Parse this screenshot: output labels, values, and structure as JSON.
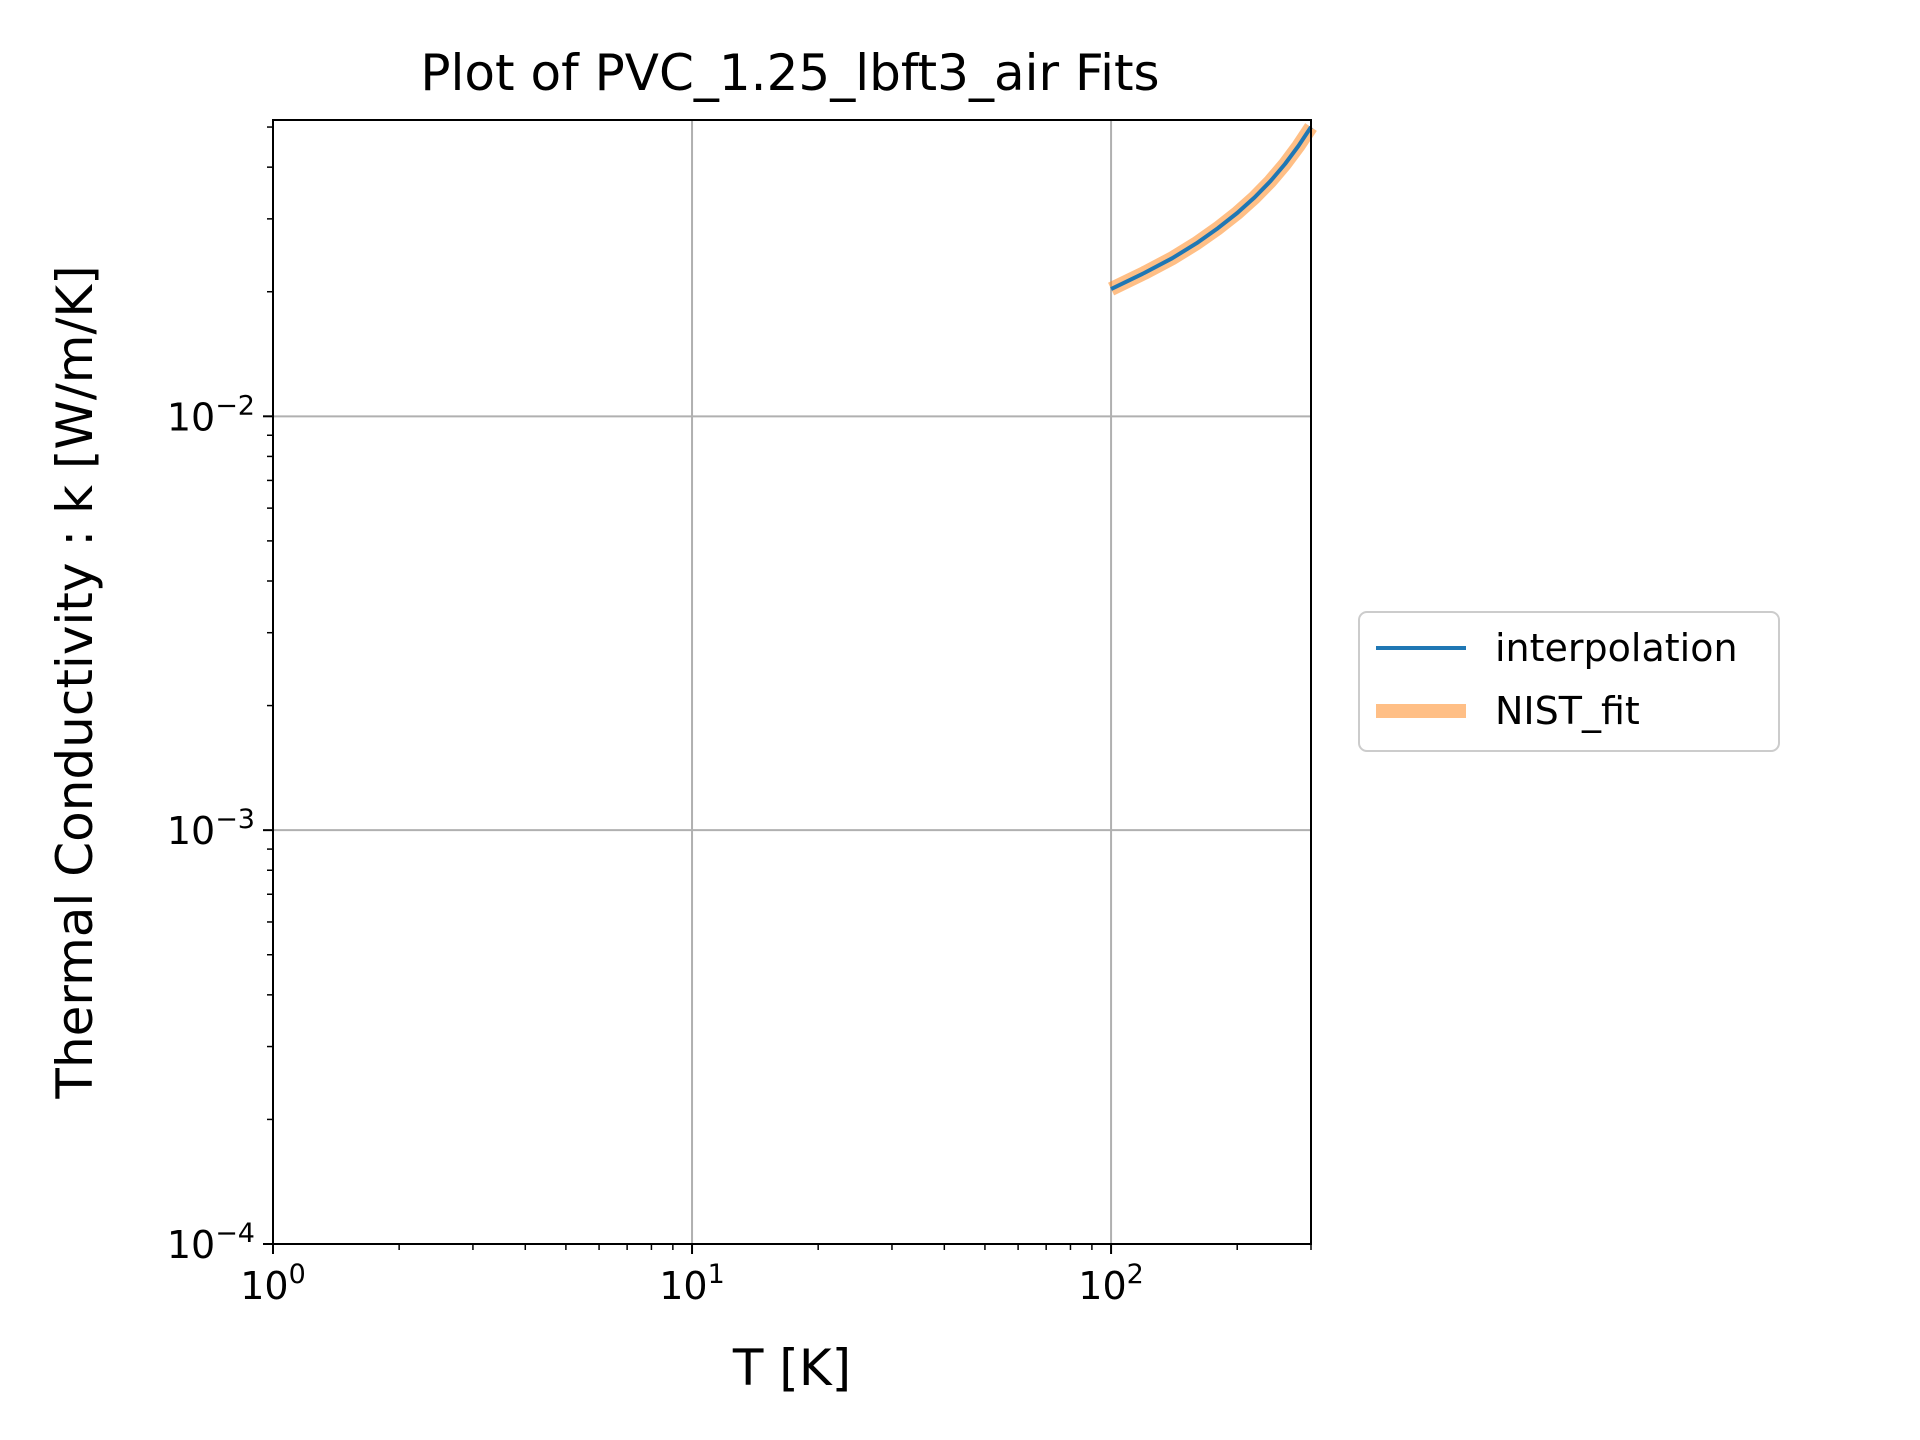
{
  "chart_data": {
    "type": "line",
    "title": "Plot of PVC_1.25_lbft3_air Fits",
    "xlabel": "T [K]",
    "ylabel": "Thermal Conductivity : k [W/m/K]",
    "xscale": "log",
    "yscale": "log",
    "xlim": [
      1,
      300
    ],
    "ylim": [
      0.0001,
      0.052
    ],
    "grid": true,
    "legend_position": "outside-right",
    "x_ticks": [
      {
        "value": 1,
        "base": "10",
        "exp": "0"
      },
      {
        "value": 10,
        "base": "10",
        "exp": "1"
      },
      {
        "value": 100,
        "base": "10",
        "exp": "2"
      }
    ],
    "y_ticks": [
      {
        "value": 0.0001,
        "base": "10",
        "exp": "−4"
      },
      {
        "value": 0.001,
        "base": "10",
        "exp": "−3"
      },
      {
        "value": 0.01,
        "base": "10",
        "exp": "−2"
      }
    ],
    "series": [
      {
        "name": "interpolation",
        "color": "#1f77b4",
        "x": [
          100,
          120,
          140,
          160,
          180,
          200,
          220,
          240,
          260,
          280,
          300
        ],
        "y": [
          0.0203,
          0.0222,
          0.0241,
          0.0262,
          0.0285,
          0.031,
          0.0338,
          0.037,
          0.0407,
          0.045,
          0.05
        ]
      },
      {
        "name": "NIST_fit",
        "color": "#ff7f0e",
        "x": [
          100,
          120,
          140,
          160,
          180,
          200,
          220,
          240,
          260,
          280,
          300
        ],
        "y": [
          0.0203,
          0.0222,
          0.0241,
          0.0262,
          0.0285,
          0.031,
          0.0338,
          0.037,
          0.0407,
          0.045,
          0.05
        ]
      }
    ]
  }
}
